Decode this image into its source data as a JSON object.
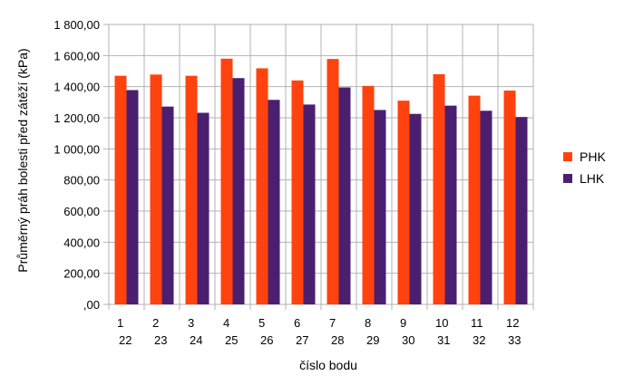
{
  "chart_data": {
    "type": "bar",
    "title": "",
    "xlabel": "číslo bodu",
    "ylabel": "Průměrný práh bolesti před zátěží (kPa)",
    "ylim": [
      0,
      1800
    ],
    "ytick_labels": [
      ",00",
      "200,00",
      "400,00",
      "600,00",
      "800,00",
      "1 000,00",
      "1 200,00",
      "1 400,00",
      "1 600,00",
      "1 800,00"
    ],
    "categories_top": [
      "1",
      "2",
      "3",
      "4",
      "5",
      "6",
      "7",
      "8",
      "9",
      "10",
      "11",
      "12"
    ],
    "categories_bottom": [
      "22",
      "23",
      "24",
      "25",
      "26",
      "27",
      "28",
      "29",
      "30",
      "31",
      "32",
      "33"
    ],
    "grid": true,
    "legend_position": "right",
    "series": [
      {
        "name": "PHK",
        "color": "#ff420e",
        "values": [
          1470,
          1478,
          1470,
          1580,
          1518,
          1440,
          1578,
          1405,
          1310,
          1480,
          1342,
          1375
        ]
      },
      {
        "name": "LHK",
        "color": "#4b1f6f",
        "values": [
          1378,
          1272,
          1232,
          1455,
          1315,
          1285,
          1395,
          1250,
          1225,
          1278,
          1245,
          1205
        ]
      }
    ]
  }
}
